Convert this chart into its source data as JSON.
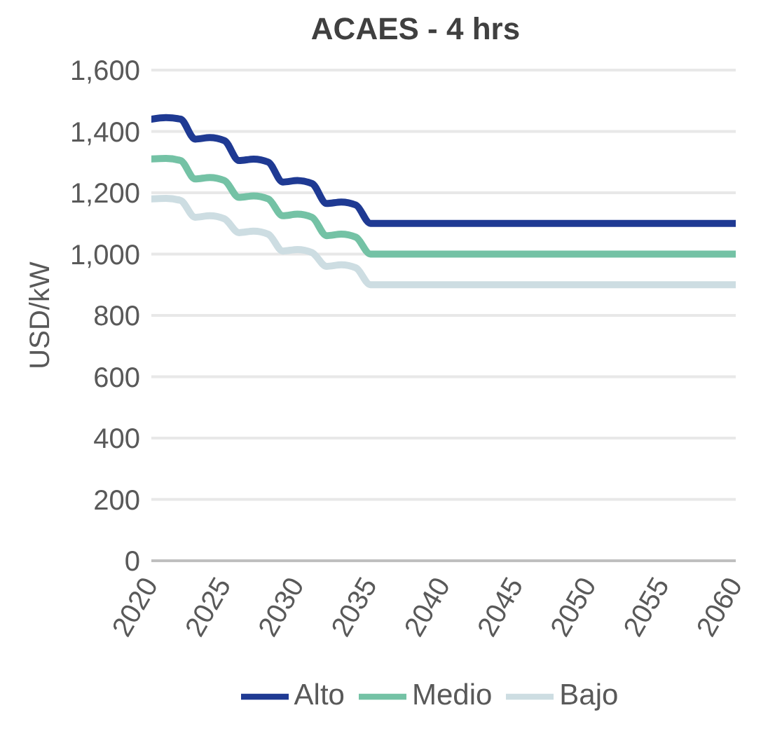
{
  "chart_data": {
    "type": "line",
    "title": "ACAES - 4 hrs",
    "ylabel": "USD/kW",
    "x": [
      2020,
      2021,
      2022,
      2023,
      2024,
      2025,
      2026,
      2027,
      2028,
      2029,
      2030,
      2031,
      2032,
      2033,
      2034,
      2035,
      2036,
      2060
    ],
    "series": [
      {
        "name": "Alto",
        "color": "#1f3a93",
        "values": [
          1440,
          1445,
          1440,
          1375,
          1380,
          1370,
          1305,
          1310,
          1300,
          1235,
          1240,
          1230,
          1165,
          1170,
          1160,
          1100,
          1100,
          1100
        ]
      },
      {
        "name": "Medio",
        "color": "#74c2a5",
        "values": [
          1310,
          1312,
          1305,
          1245,
          1250,
          1240,
          1185,
          1190,
          1180,
          1125,
          1130,
          1120,
          1060,
          1065,
          1055,
          1000,
          1000,
          1000
        ]
      },
      {
        "name": "Bajo",
        "color": "#cddde2",
        "values": [
          1180,
          1182,
          1175,
          1120,
          1125,
          1115,
          1070,
          1075,
          1065,
          1010,
          1015,
          1005,
          960,
          965,
          955,
          900,
          900,
          900
        ]
      }
    ],
    "xlim": [
      2020,
      2060
    ],
    "xticks": [
      2020,
      2025,
      2030,
      2035,
      2040,
      2045,
      2050,
      2055,
      2060
    ],
    "ylim": [
      0,
      1600
    ],
    "yticks": [
      0,
      200,
      400,
      600,
      800,
      {
        "value": 1000,
        "label": "1,000"
      },
      {
        "value": 1200,
        "label": "1,200"
      },
      {
        "value": 1400,
        "label": "1,400"
      },
      {
        "value": 1600,
        "label": "1,600"
      }
    ],
    "grid": "y",
    "legend": "bottom",
    "marker": "none",
    "line_style": "solid"
  }
}
